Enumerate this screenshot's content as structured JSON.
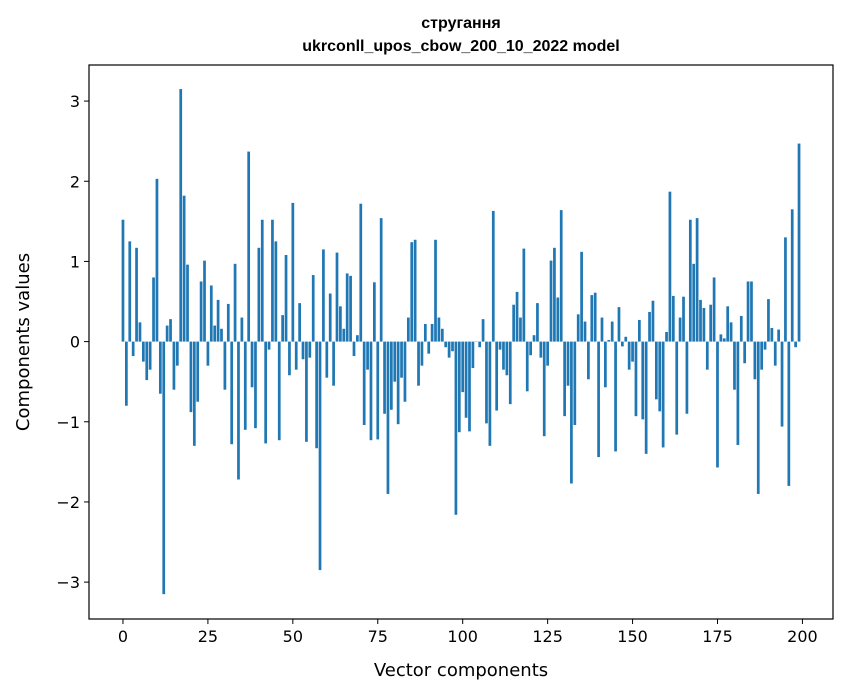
{
  "chart_data": {
    "type": "bar",
    "title": "стругання",
    "subtitle": "ukrconll_upos_cbow_200_10_2022 model",
    "xlabel": "Vector components",
    "ylabel": "Components values",
    "xlim": [
      -10,
      209
    ],
    "ylim": [
      -3.46,
      3.45
    ],
    "xticks": [
      0,
      25,
      50,
      75,
      100,
      125,
      150,
      175,
      200
    ],
    "yticks": [
      -3,
      -2,
      -1,
      0,
      1,
      2,
      3
    ],
    "ytick_labels": [
      "−3",
      "−2",
      "−1",
      "0",
      "1",
      "2",
      "3"
    ],
    "grid": false,
    "bar_color": "#1f77b4",
    "series": [
      {
        "values": [
          1.52,
          -0.8,
          1.25,
          -0.18,
          1.17,
          0.24,
          -0.25,
          -0.48,
          -0.35,
          0.8,
          2.03,
          -0.65,
          -3.15,
          0.2,
          0.28,
          -0.6,
          -0.3,
          3.15,
          1.82,
          0.96,
          -0.88,
          -1.3,
          -0.75,
          0.75,
          1.01,
          -0.3,
          0.7,
          0.2,
          0.52,
          0.16,
          -0.6,
          0.47,
          -1.28,
          0.97,
          -1.72,
          0.3,
          -1.1,
          2.37,
          -0.57,
          -1.08,
          1.17,
          1.52,
          -1.27,
          -0.1,
          1.52,
          1.25,
          -1.23,
          0.33,
          1.08,
          -0.42,
          1.73,
          -0.35,
          0.48,
          -0.22,
          -1.25,
          -0.2,
          0.83,
          -1.33,
          -2.85,
          1.15,
          -0.45,
          0.6,
          -0.55,
          1.11,
          0.44,
          0.16,
          0.85,
          0.82,
          -0.18,
          0.08,
          1.72,
          -1.04,
          -0.35,
          -1.23,
          0.74,
          -1.22,
          1.54,
          -0.9,
          -1.9,
          -0.85,
          -0.5,
          -1.03,
          -0.45,
          -0.75,
          0.3,
          1.24,
          1.27,
          -0.55,
          -0.3,
          0.22,
          -0.15,
          0.22,
          1.27,
          0.3,
          0.16,
          -0.07,
          -0.2,
          -0.12,
          -2.16,
          -1.13,
          -0.63,
          -0.95,
          -1.12,
          -0.33,
          0.0,
          -0.07,
          0.28,
          -1.02,
          -1.3,
          1.63,
          -0.86,
          -0.1,
          -0.35,
          -0.42,
          -0.78,
          0.46,
          0.62,
          0.3,
          1.16,
          -0.62,
          -0.17,
          0.08,
          0.48,
          -0.2,
          -1.18,
          -0.3,
          1.01,
          1.17,
          0.55,
          1.64,
          -0.93,
          -0.55,
          -1.77,
          -1.04,
          0.34,
          1.12,
          0.25,
          -0.47,
          0.58,
          0.61,
          -1.44,
          0.3,
          -0.57,
          0.02,
          0.25,
          -1.37,
          0.43,
          -0.06,
          0.06,
          -0.35,
          -0.25,
          -0.93,
          0.27,
          -0.97,
          -1.4,
          0.37,
          0.51,
          -0.72,
          -0.87,
          -1.32,
          0.12,
          1.87,
          0.57,
          -1.16,
          0.3,
          0.56,
          -0.9,
          1.52,
          0.97,
          1.54,
          0.52,
          0.42,
          -0.35,
          0.46,
          0.8,
          -1.57,
          0.09,
          0.04,
          0.44,
          0.24,
          -0.6,
          -1.29,
          0.32,
          -0.27,
          0.75,
          0.75,
          -0.47,
          -1.9,
          -0.35,
          -0.1,
          0.53,
          0.17,
          -0.3,
          0.15,
          -1.06,
          1.3,
          -1.8,
          1.65,
          -0.07,
          2.47
        ]
      }
    ]
  }
}
